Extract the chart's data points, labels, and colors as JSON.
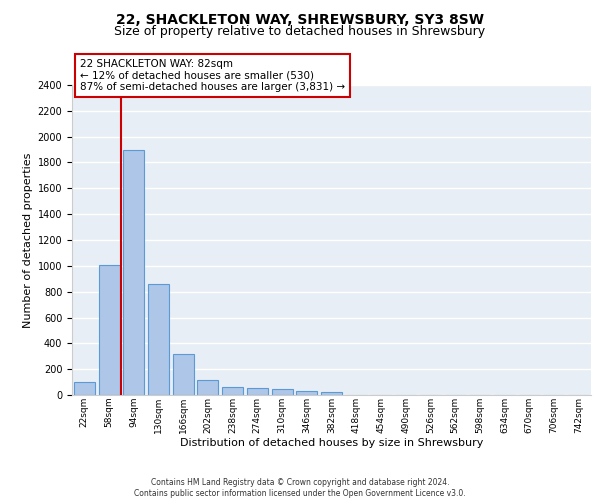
{
  "title": "22, SHACKLETON WAY, SHREWSBURY, SY3 8SW",
  "subtitle": "Size of property relative to detached houses in Shrewsbury",
  "xlabel": "Distribution of detached houses by size in Shrewsbury",
  "ylabel": "Number of detached properties",
  "categories": [
    "22sqm",
    "58sqm",
    "94sqm",
    "130sqm",
    "166sqm",
    "202sqm",
    "238sqm",
    "274sqm",
    "310sqm",
    "346sqm",
    "382sqm",
    "418sqm",
    "454sqm",
    "490sqm",
    "526sqm",
    "562sqm",
    "598sqm",
    "634sqm",
    "670sqm",
    "706sqm",
    "742sqm"
  ],
  "values": [
    100,
    1010,
    1900,
    860,
    315,
    120,
    60,
    55,
    45,
    28,
    20,
    0,
    0,
    0,
    0,
    0,
    0,
    0,
    0,
    0,
    0
  ],
  "bar_color": "#aec6e8",
  "bar_edge_color": "#5b9bd5",
  "background_color": "#e8eef5",
  "grid_color": "#ffffff",
  "vline_color": "#cc0000",
  "vline_x_pos": 1.5,
  "annotation_line1": "22 SHACKLETON WAY: 82sqm",
  "annotation_line2": "← 12% of detached houses are smaller (530)",
  "annotation_line3": "87% of semi-detached houses are larger (3,831) →",
  "annotation_box_edgecolor": "#cc0000",
  "ylim": [
    0,
    2400
  ],
  "yticks": [
    0,
    200,
    400,
    600,
    800,
    1000,
    1200,
    1400,
    1600,
    1800,
    2000,
    2200,
    2400
  ],
  "footer_line1": "Contains HM Land Registry data © Crown copyright and database right 2024.",
  "footer_line2": "Contains public sector information licensed under the Open Government Licence v3.0.",
  "title_fontsize": 10,
  "subtitle_fontsize": 9,
  "ylabel_fontsize": 8,
  "xlabel_fontsize": 8,
  "tick_fontsize": 7,
  "xtick_fontsize": 6.5,
  "annotation_fontsize": 7.5,
  "footer_fontsize": 5.5
}
